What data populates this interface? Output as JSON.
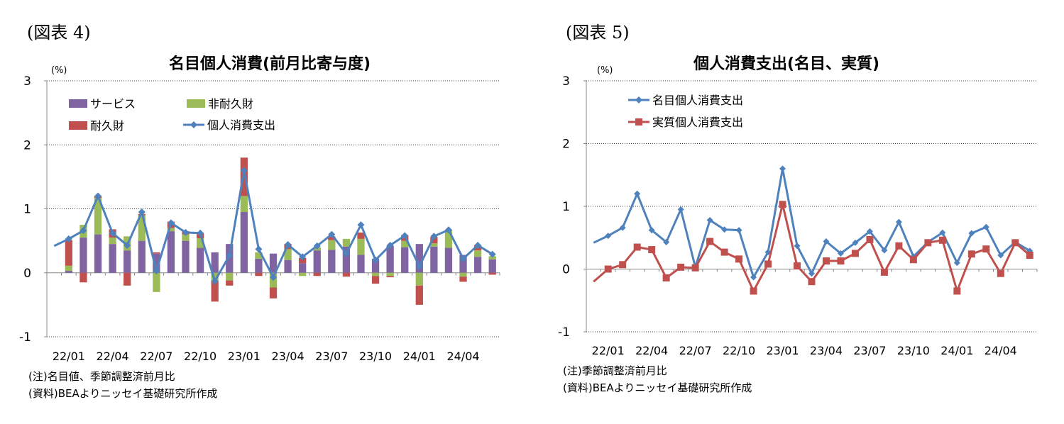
{
  "charts": [
    {
      "figure_label": "(図表 4)",
      "unit": "(%)",
      "notes": [
        "(注)名目値、季節調整済前月比",
        "(資料)BEAよりニッセイ基礎研究所作成"
      ],
      "chart_data": {
        "type": "bar",
        "stacked": true,
        "title": "名目個人消費(前月比寄与度)",
        "xlabel": "",
        "ylabel": "(%)",
        "ylim": [
          -1,
          3
        ],
        "yticks": [
          -1,
          0,
          1,
          2,
          3
        ],
        "grid": true,
        "legend_position": "top-left",
        "categories": [
          "21/12",
          "22/01",
          "22/02",
          "22/03",
          "22/04",
          "22/05",
          "22/06",
          "22/07",
          "22/08",
          "22/09",
          "22/10",
          "22/11",
          "22/12",
          "23/01",
          "23/02",
          "23/03",
          "23/04",
          "23/05",
          "23/06",
          "23/07",
          "23/08",
          "23/09",
          "23/10",
          "23/11",
          "23/12",
          "24/01",
          "24/02",
          "24/03",
          "24/04",
          "24/05",
          "24/06"
        ],
        "tick_labels": [
          "22/01",
          "22/04",
          "22/07",
          "22/10",
          "23/01",
          "23/04",
          "23/07",
          "23/10",
          "24/01",
          "24/04"
        ],
        "tick_indices": [
          1,
          4,
          7,
          10,
          13,
          16,
          19,
          22,
          25,
          28
        ],
        "series": [
          {
            "name": "サービス",
            "kind": "bar",
            "color": "#8064A2",
            "values": [
              0,
              0.03,
              0.55,
              0.6,
              0.45,
              0.35,
              0.5,
              0.3,
              0.65,
              0.5,
              0.39,
              0.32,
              0.45,
              0.95,
              0.22,
              0.3,
              0.2,
              0.15,
              0.35,
              0.36,
              0.41,
              0.28,
              0.22,
              0.42,
              0.4,
              0.45,
              0.41,
              0.39,
              0.28,
              0.25,
              0.21
            ]
          },
          {
            "name": "非耐久財",
            "kind": "bar",
            "color": "#9BBB59",
            "values": [
              0,
              0.08,
              0.2,
              0.57,
              0.1,
              0.22,
              0.4,
              -0.3,
              0.05,
              0.1,
              0.15,
              -0.12,
              -0.12,
              0.25,
              0.1,
              -0.23,
              0.17,
              -0.05,
              0.05,
              0.15,
              0.12,
              0.25,
              -0.05,
              -0.05,
              0.1,
              -0.2,
              0.05,
              0.27,
              -0.06,
              0.1,
              0.05
            ]
          },
          {
            "name": "耐久財",
            "kind": "bar",
            "color": "#C0504D",
            "values": [
              0,
              0.4,
              -0.15,
              0.03,
              0.13,
              -0.2,
              0.02,
              0.02,
              0.1,
              0.05,
              0.08,
              -0.33,
              -0.08,
              0.6,
              -0.05,
              -0.17,
              0.08,
              0.08,
              -0.05,
              0.06,
              -0.06,
              0.1,
              -0.12,
              -0.02,
              0.09,
              -0.3,
              0.1,
              0.01,
              -0.08,
              0.08,
              -0.03
            ]
          },
          {
            "name": "個人消費支出",
            "kind": "line",
            "color": "#4F81BD",
            "values": [
              0.42,
              0.53,
              0.66,
              1.2,
              0.62,
              0.43,
              0.95,
              0.03,
              0.78,
              0.63,
              0.62,
              -0.13,
              0.27,
              1.6,
              0.37,
              -0.07,
              0.44,
              0.25,
              0.42,
              0.6,
              0.3,
              0.75,
              0.2,
              0.43,
              0.58,
              0.1,
              0.57,
              0.67,
              0.22,
              0.43,
              0.29
            ]
          }
        ]
      }
    },
    {
      "figure_label": "(図表 5)",
      "unit": "(%)",
      "notes": [
        "(注)季節調整済前月比",
        "(資料)BEAよりニッセイ基礎研究所作成"
      ],
      "chart_data": {
        "type": "line",
        "title": "個人消費支出(名目、実質)",
        "xlabel": "",
        "ylabel": "(%)",
        "ylim": [
          -1,
          3
        ],
        "yticks": [
          -1,
          0,
          1,
          2,
          3
        ],
        "grid": true,
        "legend_position": "top-left",
        "categories": [
          "21/12",
          "22/01",
          "22/02",
          "22/03",
          "22/04",
          "22/05",
          "22/06",
          "22/07",
          "22/08",
          "22/09",
          "22/10",
          "22/11",
          "22/12",
          "23/01",
          "23/02",
          "23/03",
          "23/04",
          "23/05",
          "23/06",
          "23/07",
          "23/08",
          "23/09",
          "23/10",
          "23/11",
          "23/12",
          "24/01",
          "24/02",
          "24/03",
          "24/04",
          "24/05",
          "24/06"
        ],
        "tick_labels": [
          "22/01",
          "22/04",
          "22/07",
          "22/10",
          "23/01",
          "23/04",
          "23/07",
          "23/10",
          "24/01",
          "24/04"
        ],
        "tick_indices": [
          1,
          4,
          7,
          10,
          13,
          16,
          19,
          22,
          25,
          28
        ],
        "series": [
          {
            "name": "名目個人消費支出",
            "marker": "diamond",
            "color": "#4F81BD",
            "values": [
              0.42,
              0.53,
              0.66,
              1.2,
              0.62,
              0.43,
              0.95,
              0.03,
              0.78,
              0.63,
              0.62,
              -0.13,
              0.27,
              1.6,
              0.37,
              -0.07,
              0.44,
              0.25,
              0.42,
              0.6,
              0.3,
              0.75,
              0.2,
              0.43,
              0.58,
              0.1,
              0.57,
              0.67,
              0.22,
              0.43,
              0.29
            ]
          },
          {
            "name": "実質個人消費支出",
            "marker": "square",
            "color": "#C0504D",
            "values": [
              -0.2,
              0.0,
              0.07,
              0.35,
              0.31,
              -0.14,
              0.03,
              0.02,
              0.44,
              0.27,
              0.16,
              -0.35,
              0.08,
              1.03,
              0.05,
              -0.2,
              0.13,
              0.13,
              0.25,
              0.47,
              -0.05,
              0.37,
              0.15,
              0.42,
              0.46,
              -0.35,
              0.24,
              0.32,
              -0.07,
              0.42,
              0.22
            ]
          }
        ]
      }
    }
  ]
}
